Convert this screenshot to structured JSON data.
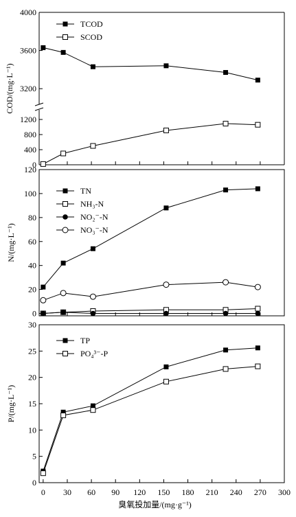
{
  "chart_data": [
    {
      "type": "line",
      "title": "",
      "ylabel": "COD/(mg·L⁻¹)",
      "broken_y_axis": true,
      "ylim_lower": [
        0,
        1400
      ],
      "ylim_upper": [
        3050,
        4000
      ],
      "x": [
        0,
        25,
        62,
        153,
        227,
        267
      ],
      "yticks": [
        0,
        400,
        800,
        1200,
        3200,
        3600,
        4000
      ],
      "legend_position": "top-left",
      "series": [
        {
          "name": "TCOD",
          "marker": "filled-square",
          "segment": "upper",
          "values": [
            3630,
            3580,
            3430,
            3440,
            3370,
            3290
          ]
        },
        {
          "name": "SCOD",
          "marker": "open-square",
          "segment": "lower",
          "values": [
            20,
            300,
            500,
            910,
            1090,
            1060
          ]
        }
      ]
    },
    {
      "type": "line",
      "title": "",
      "ylabel": "N/(mg·L⁻¹)",
      "ylim": [
        -2,
        120
      ],
      "x": [
        0,
        25,
        62,
        153,
        227,
        267
      ],
      "yticks": [
        0,
        20,
        40,
        60,
        80,
        100,
        120
      ],
      "legend_position": "top-left",
      "series": [
        {
          "name": "TN",
          "marker": "filled-square",
          "values": [
            22,
            42,
            54,
            88,
            103,
            104
          ]
        },
        {
          "name": "NH₃-N",
          "marker": "open-square",
          "values": [
            0,
            1,
            2,
            3,
            3,
            4
          ]
        },
        {
          "name": "NO₂⁻-N",
          "marker": "filled-circle",
          "values": [
            0,
            1,
            0,
            0,
            0,
            0
          ]
        },
        {
          "name": "NO₃⁻-N",
          "marker": "open-circle",
          "values": [
            11,
            17,
            14,
            24,
            26,
            22
          ]
        }
      ]
    },
    {
      "type": "line",
      "title": "",
      "ylabel": "P/(mg·L⁻¹)",
      "ylim": [
        0,
        30
      ],
      "x": [
        0,
        25,
        62,
        153,
        227,
        267
      ],
      "yticks": [
        0,
        5,
        10,
        15,
        20,
        25,
        30
      ],
      "legend_position": "top-left",
      "series": [
        {
          "name": "TP",
          "marker": "filled-square",
          "values": [
            2.2,
            13.4,
            14.6,
            22.0,
            25.2,
            25.6
          ]
        },
        {
          "name": "PO₄³⁻-P",
          "marker": "open-square",
          "values": [
            1.8,
            12.8,
            13.8,
            19.2,
            21.6,
            22.1
          ]
        }
      ]
    }
  ],
  "x_axis": {
    "label": "臭氧投加量/(mg·g⁻¹)",
    "xlim": [
      -5,
      300
    ],
    "ticks": [
      0,
      30,
      60,
      90,
      120,
      150,
      180,
      210,
      240,
      270,
      300
    ]
  }
}
